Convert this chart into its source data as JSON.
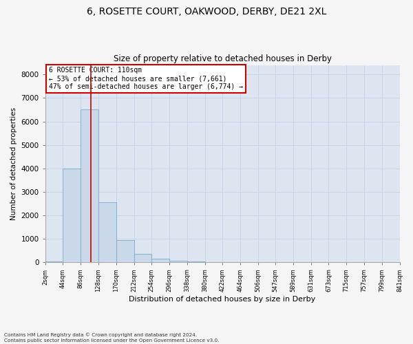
{
  "title1": "6, ROSETTE COURT, OAKWOOD, DERBY, DE21 2XL",
  "title2": "Size of property relative to detached houses in Derby",
  "xlabel": "Distribution of detached houses by size in Derby",
  "ylabel": "Number of detached properties",
  "footnote": "Contains HM Land Registry data © Crown copyright and database right 2024.\nContains public sector information licensed under the Open Government Licence v3.0.",
  "bar_edges": [
    2,
    44,
    86,
    128,
    170,
    212,
    254,
    296,
    338,
    380,
    422,
    464,
    506,
    547,
    589,
    631,
    673,
    715,
    757,
    799,
    841
  ],
  "bar_heights": [
    50,
    3980,
    6520,
    2560,
    940,
    370,
    160,
    70,
    50,
    20,
    5,
    0,
    0,
    0,
    0,
    0,
    0,
    0,
    0,
    0
  ],
  "bar_color": "#c9d9ea",
  "bar_edgecolor": "#7aaac8",
  "grid_color": "#c8d4e8",
  "property_size": 110,
  "vline_color": "#cc0000",
  "annotation_text": "6 ROSETTE COURT: 110sqm\n← 53% of detached houses are smaller (7,661)\n47% of semi-detached houses are larger (6,774) →",
  "annotation_box_color": "#cc0000",
  "annotation_bg": "#ffffff",
  "ylim": [
    0,
    8400
  ],
  "yticks": [
    0,
    1000,
    2000,
    3000,
    4000,
    5000,
    6000,
    7000,
    8000
  ],
  "tick_labels": [
    "2sqm",
    "44sqm",
    "86sqm",
    "128sqm",
    "170sqm",
    "212sqm",
    "254sqm",
    "296sqm",
    "338sqm",
    "380sqm",
    "422sqm",
    "464sqm",
    "506sqm",
    "547sqm",
    "589sqm",
    "631sqm",
    "673sqm",
    "715sqm",
    "757sqm",
    "799sqm",
    "841sqm"
  ],
  "fig_bg_color": "#f5f5f5",
  "plot_bg_color": "#dde6f0",
  "title1_fontsize": 10,
  "title2_fontsize": 8.5,
  "annotation_fontsize": 7,
  "ylabel_fontsize": 7.5,
  "xlabel_fontsize": 8,
  "ytick_fontsize": 7.5,
  "xtick_fontsize": 6
}
